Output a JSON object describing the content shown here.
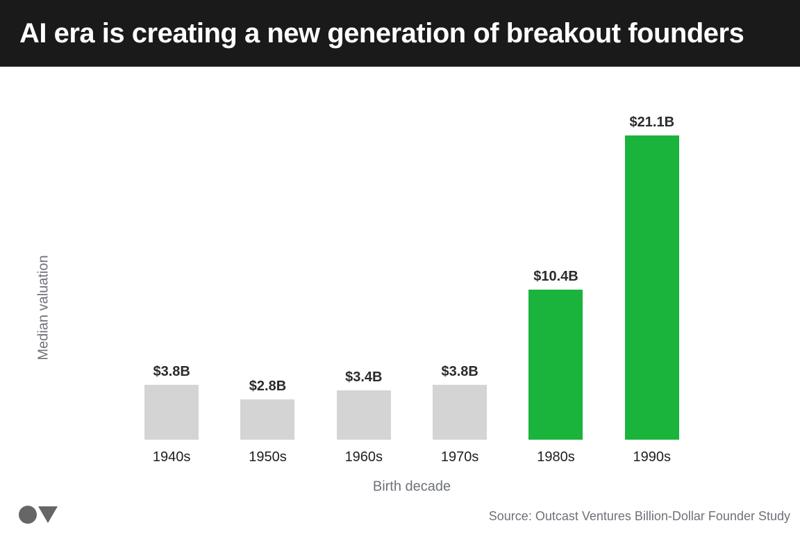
{
  "header": {
    "title": "AI era is creating a new generation of breakout founders"
  },
  "chart_data": {
    "type": "bar",
    "title": "AI era is creating a new generation of breakout founders",
    "categories": [
      "1940s",
      "1950s",
      "1960s",
      "1970s",
      "1980s",
      "1990s"
    ],
    "values": [
      3.8,
      2.8,
      3.4,
      3.8,
      10.4,
      21.1
    ],
    "value_labels": [
      "$3.8B",
      "$2.8B",
      "$3.4B",
      "$3.8B",
      "$10.4B",
      "$21.1B"
    ],
    "bar_colors": [
      "#d4d4d4",
      "#d4d4d4",
      "#d4d4d4",
      "#d4d4d4",
      "#1ab33c",
      "#1ab33c"
    ],
    "muted_color": "#d4d4d4",
    "highlight_color": "#1ab33c",
    "xlabel": "Birth decade",
    "ylabel": "Median valuation",
    "ylim": [
      0,
      22
    ],
    "grid": false,
    "legend": false,
    "value_labels_position": "above-bars"
  },
  "footer": {
    "source": "Source: Outcast Ventures Billion-Dollar Founder Study",
    "logo": {
      "circle_icon": "filled-circle",
      "triangle_icon": "filled-triangle-down",
      "color": "#666666"
    }
  }
}
